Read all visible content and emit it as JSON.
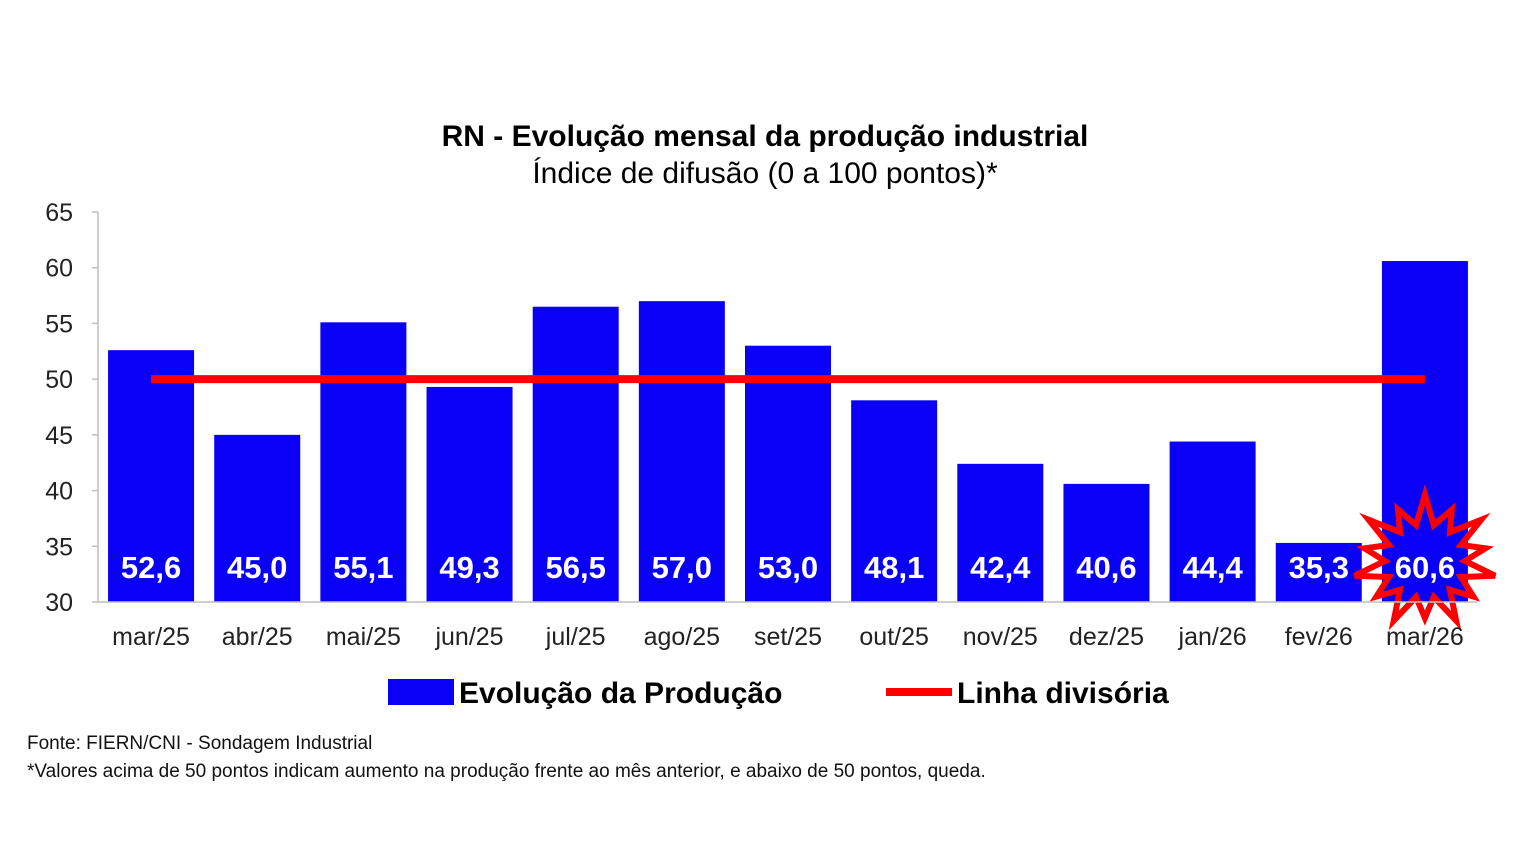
{
  "chart_data": {
    "type": "bar",
    "title": "RN - Evolução mensal da produção industrial",
    "subtitle": "Índice de difusão (0 a 100 pontos)*",
    "categories": [
      "mar/25",
      "abr/25",
      "mai/25",
      "jun/25",
      "jul/25",
      "ago/25",
      "set/25",
      "out/25",
      "nov/25",
      "dez/25",
      "jan/26",
      "fev/26",
      "mar/26"
    ],
    "series": [
      {
        "name": "Evolução da Produção",
        "color": "#0a00f5",
        "values": [
          52.6,
          45.0,
          55.1,
          49.3,
          56.5,
          57.0,
          53.0,
          48.1,
          42.4,
          40.6,
          44.4,
          35.3,
          60.6
        ],
        "labels": [
          "52,6",
          "45,0",
          "55,1",
          "49,3",
          "56,5",
          "57,0",
          "53,0",
          "48,1",
          "42,4",
          "40,6",
          "44,4",
          "35,3",
          "60,6"
        ]
      },
      {
        "name": "Linha divisória",
        "type": "line",
        "color": "#ff0000",
        "values": [
          50,
          50,
          50,
          50,
          50,
          50,
          50,
          50,
          50,
          50,
          50,
          50,
          50
        ]
      }
    ],
    "ylim": [
      30,
      65
    ],
    "yticks": [
      30,
      35,
      40,
      45,
      50,
      55,
      60,
      65
    ],
    "grid": false,
    "legend": "bottom",
    "highlight": {
      "category": "mar/26",
      "shape": "starburst",
      "color": "#ff0000"
    }
  },
  "footnotes": {
    "source": "Fonte: FIERN/CNI - Sondagem Industrial",
    "note": "*Valores acima de 50 pontos indicam aumento na produção frente ao mês anterior, e abaixo de 50 pontos, queda."
  }
}
